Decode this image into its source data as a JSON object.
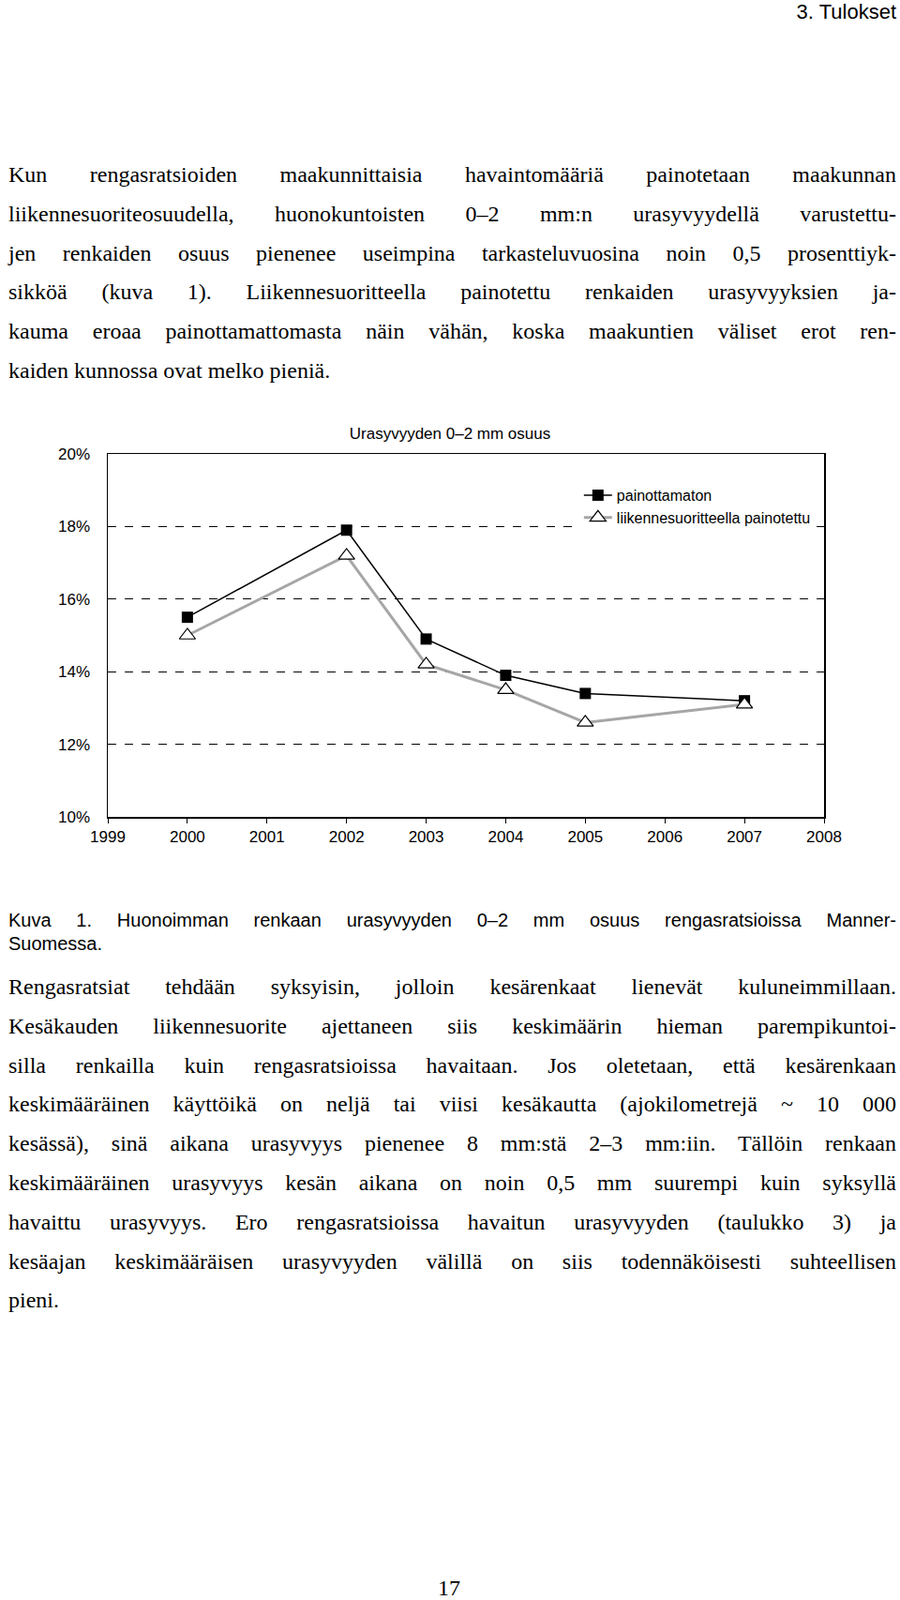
{
  "header": "3. Tulokset",
  "paragraphs": [
    [
      "Kun rengasratsioiden maakunnittaisia havaintomääriä painotetaan maakunnan",
      "liikennesuoriteosuudella, huonokuntoisten 0–2 mm:n urasyvyydellä varustettu-",
      "jen renkaiden osuus pienenee useimpina tarkasteluvuosina noin 0,5 prosenttiyk-",
      "sikköä (kuva 1). Liikennesuoritteella painotettu renkaiden urasyvyyksien ja-",
      "kauma eroaa painottamattomasta näin vähän, koska maakuntien väliset erot ren-",
      "kaiden kunnossa ovat melko pieniä."
    ],
    [
      "Rengasratsiat tehdään syksyisin, jolloin kesärenkaat lienevät kuluneimmillaan.",
      "Kesäkauden liikennesuorite ajettaneen siis keskimäärin hieman parempikuntoi-",
      "silla renkailla kuin rengasratsioissa havaitaan. Jos oletetaan, että kesärenkaan",
      "keskimääräinen käyttöikä on neljä tai viisi kesäkautta (ajokilometrejä ~ 10 000",
      "kesässä), sinä aikana urasyvyys pienenee 8 mm:stä 2–3 mm:iin. Tällöin renkaan",
      "keskimääräinen urasyvyys kesän aikana on noin 0,5 mm suurempi kuin syksyllä",
      "havaittu urasyvyys. Ero rengasratsioissa havaitun urasyvyyden (taulukko 3) ja",
      "kesäajan keskimääräisen urasyvyyden välillä on siis todennäköisesti suhteellisen",
      "pieni."
    ]
  ],
  "chart_data": {
    "type": "line",
    "title": "Urasyvyyden 0–2 mm osuus",
    "x": [
      2000,
      2002,
      2003,
      2004,
      2005,
      2007
    ],
    "series": [
      {
        "name": "painottamaton",
        "color": "#000000",
        "marker": "square",
        "values": [
          15.5,
          17.9,
          14.9,
          13.9,
          13.4,
          13.2
        ]
      },
      {
        "name": "liikennesuoritteella painotettu",
        "color": "#a6a6a6",
        "marker": "triangle-up-open",
        "values": [
          15.0,
          17.2,
          14.2,
          13.5,
          12.6,
          13.1
        ]
      }
    ],
    "xlim": [
      1999,
      2008
    ],
    "xticks": [
      1999,
      2000,
      2001,
      2002,
      2003,
      2004,
      2005,
      2006,
      2007,
      2008
    ],
    "ylim": [
      10,
      20
    ],
    "yticks": [
      {
        "value": 10,
        "label": "10%"
      },
      {
        "value": 12,
        "label": "12%"
      },
      {
        "value": 14,
        "label": "14%"
      },
      {
        "value": 16,
        "label": "16%"
      },
      {
        "value": 18,
        "label": "18%"
      },
      {
        "value": 20,
        "label": "20%"
      }
    ],
    "grid": true,
    "legend": "upper right"
  },
  "caption": [
    "Kuva 1. Huonoimman renkaan urasyvyyden 0–2 mm osuus rengasratsioissa Manner-",
    "Suomessa."
  ],
  "page_number": "17"
}
